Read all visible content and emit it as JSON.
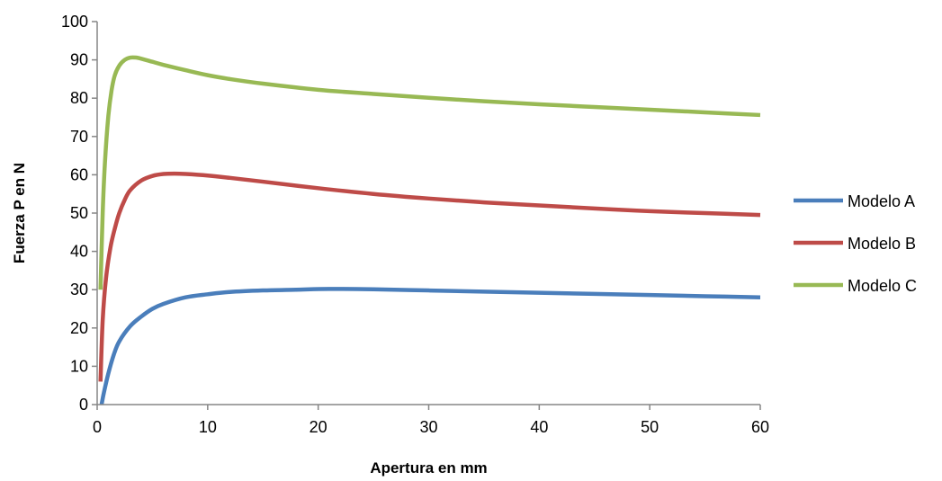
{
  "chart_data": {
    "type": "line",
    "xlabel": "Apertura en mm",
    "ylabel": "Fuerza P en N",
    "xlim": [
      0,
      60
    ],
    "ylim": [
      0,
      100
    ],
    "xticks": [
      0,
      10,
      20,
      30,
      40,
      50,
      60
    ],
    "yticks": [
      0,
      10,
      20,
      30,
      40,
      50,
      60,
      70,
      80,
      90,
      100
    ],
    "grid": false,
    "legend_position": "right",
    "series": [
      {
        "name": "Modelo A",
        "color": "#4a7ebb",
        "x": [
          0.4,
          0.6,
          1,
          1.5,
          2,
          3,
          4,
          5,
          6,
          8,
          10,
          12,
          15,
          18,
          21,
          25,
          30,
          35,
          40,
          45,
          50,
          55,
          60
        ],
        "y": [
          0,
          3,
          8,
          13,
          16.5,
          20.5,
          23,
          25,
          26.3,
          28,
          28.8,
          29.4,
          29.8,
          30,
          30.2,
          30.1,
          29.8,
          29.5,
          29.2,
          28.9,
          28.6,
          28.3,
          28
        ]
      },
      {
        "name": "Modelo B",
        "color": "#be4b48",
        "x": [
          0.3,
          0.5,
          0.8,
          1.2,
          1.6,
          2,
          2.5,
          3,
          4,
          5,
          6,
          7,
          8,
          10,
          12,
          15,
          20,
          25,
          30,
          35,
          40,
          45,
          50,
          55,
          60
        ],
        "y": [
          6,
          22,
          33,
          41,
          46,
          50,
          53.5,
          56,
          58.5,
          59.7,
          60.2,
          60.3,
          60.2,
          59.8,
          59.2,
          58.2,
          56.5,
          55,
          53.8,
          52.8,
          52,
          51.2,
          50.5,
          50,
          49.5
        ]
      },
      {
        "name": "Modelo C",
        "color": "#98b954",
        "x": [
          0.3,
          0.5,
          0.7,
          1,
          1.3,
          1.6,
          2,
          2.5,
          3,
          3.5,
          4,
          5,
          6,
          8,
          10,
          12,
          15,
          20,
          25,
          30,
          35,
          40,
          45,
          50,
          55,
          60
        ],
        "y": [
          30,
          50,
          63,
          75,
          82,
          86,
          88.5,
          90,
          90.6,
          90.6,
          90.3,
          89.5,
          88.7,
          87.3,
          86,
          85,
          83.8,
          82.2,
          81.1,
          80.1,
          79.2,
          78.4,
          77.7,
          77,
          76.3,
          75.6
        ]
      }
    ]
  }
}
